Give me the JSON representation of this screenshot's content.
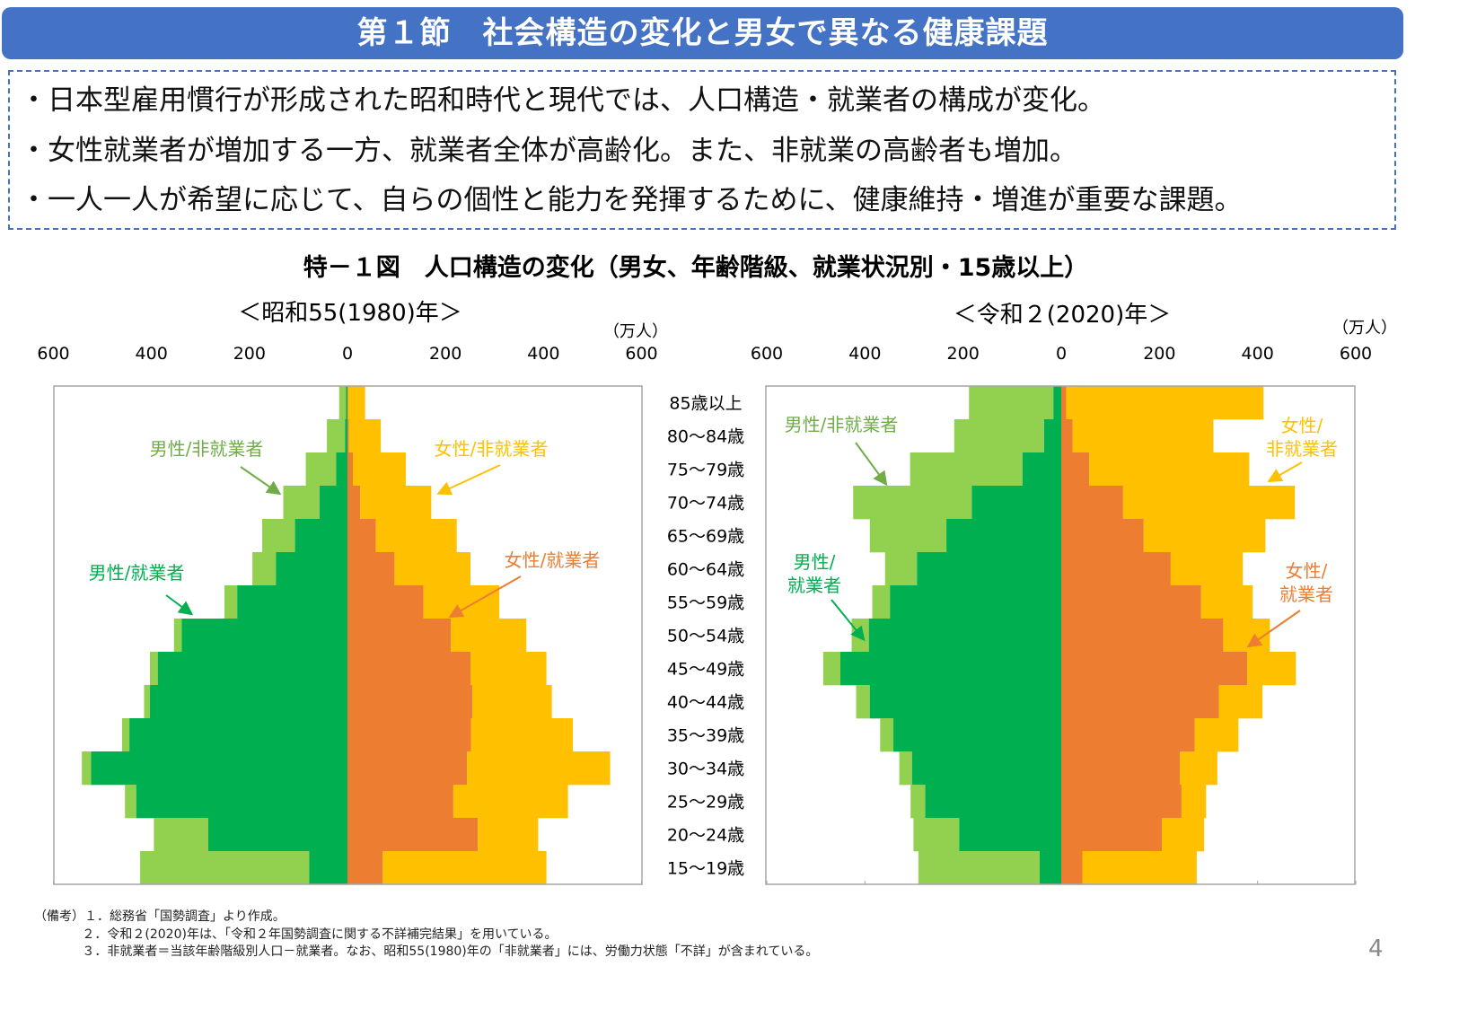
{
  "header": {
    "title": "第１節　社会構造の変化と男女で異なる健康課題"
  },
  "bullets": [
    "・日本型雇用慣行が形成された昭和時代と現代では、人口構造・就業者の構成が変化。",
    "・女性就業者が増加する一方、就業者全体が高齢化。また、非就業の高齢者も増加。",
    "・一人一人が希望に応じて、自らの個性と能力を発揮するために、健康維持・増進が重要な課題。"
  ],
  "colors": {
    "header": "#4472C4",
    "male_employed": "#00AF50",
    "male_nonemployed": "#92D050",
    "female_employed": "#ED7D31",
    "female_nonemployed": "#FFC000"
  },
  "chart_data": {
    "type": "bar",
    "title": "特－１図　人口構造の変化（男女、年齢階級、就業状況別・15歳以上）",
    "unit": "（万人）",
    "categories": [
      "85歳以上",
      "80～84歳",
      "75～79歳",
      "70～74歳",
      "65～69歳",
      "60～64歳",
      "55～59歳",
      "50～54歳",
      "45～49歳",
      "40～44歳",
      "35～39歳",
      "30～34歳",
      "25～29歳",
      "20～24歳",
      "15～19歳"
    ],
    "xlim": [
      -600,
      600
    ],
    "ticks": [
      "600",
      "400",
      "200",
      "0",
      "200",
      "400",
      "600"
    ],
    "panels": [
      {
        "subtitle": "＜昭和55(1980)年＞",
        "male_employed": [
          3,
          5,
          23,
          57,
          107,
          146,
          225,
          338,
          387,
          403,
          445,
          523,
          431,
          284,
          78
        ],
        "male_nonemployed": [
          14,
          37,
          62,
          74,
          67,
          48,
          26,
          16,
          16,
          12,
          15,
          19,
          23,
          111,
          345
        ],
        "female_employed": [
          1,
          3,
          11,
          26,
          58,
          96,
          155,
          211,
          251,
          255,
          252,
          244,
          216,
          266,
          72
        ],
        "female_nonemployed": [
          35,
          65,
          108,
          145,
          165,
          155,
          155,
          154,
          155,
          162,
          208,
          292,
          234,
          123,
          334
        ],
        "annotations": [
          "男性/非就業者",
          "女性/非就業者",
          "男性/就業者",
          "女性/就業者"
        ]
      },
      {
        "subtitle": "＜令和２(2020)年＞",
        "male_employed": [
          16,
          35,
          79,
          182,
          234,
          294,
          349,
          392,
          450,
          390,
          342,
          304,
          277,
          208,
          44
        ],
        "male_nonemployed": [
          172,
          183,
          229,
          242,
          156,
          65,
          36,
          35,
          35,
          28,
          27,
          26,
          30,
          93,
          247
        ],
        "female_employed": [
          10,
          23,
          57,
          126,
          168,
          223,
          285,
          330,
          379,
          321,
          272,
          242,
          245,
          205,
          43
        ],
        "female_nonemployed": [
          402,
          287,
          326,
          350,
          248,
          147,
          105,
          95,
          99,
          89,
          89,
          76,
          50,
          86,
          233
        ],
        "annotations": [
          [
            "男性/非就業者"
          ],
          [
            "女性/",
            "非就業者"
          ],
          [
            "男性/",
            "就業者"
          ],
          [
            "女性/",
            "就業者"
          ]
        ]
      }
    ]
  },
  "notes": {
    "label": "（備考）",
    "items": [
      "１．総務省「国勢調査」より作成。",
      "２．令和２(2020)年は、「令和２年国勢調査に関する不詳補完結果」を用いている。",
      "３．非就業者＝当該年齢階級別人口－就業者。なお、昭和55(1980)年の「非就業者」には、労働力状態「不詳」が含まれている。"
    ]
  },
  "page_number": "4"
}
